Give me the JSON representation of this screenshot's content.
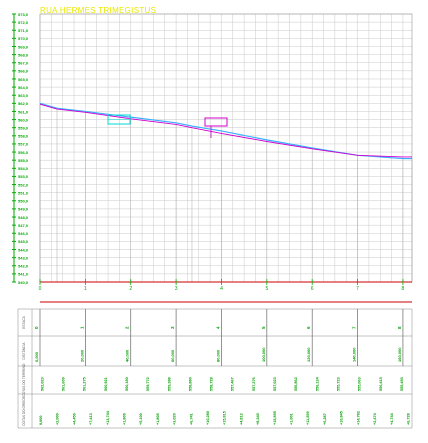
{
  "title": "RUA  HERMES  TRIMEGISTUS",
  "colors": {
    "grid": "#c8c8c8",
    "axis_green": "#00aa00",
    "terrain": "#3ab0ff",
    "project": "#d000d0",
    "box_cyan": "#00d8d8",
    "box_magenta": "#d000d0",
    "red_line": "#cc0000",
    "table_text": "#00a000"
  },
  "chart_data": {
    "type": "line",
    "ylim": [
      540.0,
      573.0
    ],
    "y_ticks": [
      "573,0",
      "572,0",
      "571,0",
      "570,0",
      "569,0",
      "568,0",
      "567,0",
      "566,0",
      "565,0",
      "564,0",
      "563,0",
      "562,0",
      "561,0",
      "560,0",
      "559,0",
      "558,0",
      "557,0",
      "556,0",
      "555,0",
      "554,0",
      "553,0",
      "552,0",
      "551,0",
      "550,0",
      "549,0",
      "548,0",
      "547,0",
      "546,0",
      "545,0",
      "544,0",
      "543,0",
      "542,0",
      "541,0",
      "540,0"
    ],
    "x_station_labels": [
      "0",
      "1",
      "2",
      "3",
      "4",
      "5",
      "6",
      "7",
      "8"
    ],
    "xlim": [
      0,
      164
    ],
    "series": [
      {
        "x": [
          0,
          7.5,
          20,
          40,
          60,
          67,
          80,
          100,
          120,
          140,
          160,
          164
        ],
        "y": [
          562.0,
          561.4,
          561.0,
          560.3,
          559.6,
          559.2,
          558.6,
          557.5,
          556.5,
          555.6,
          555.2,
          555.2
        ]
      },
      {
        "x": [
          0,
          7.5,
          20,
          40,
          60,
          67,
          80,
          100,
          120,
          140,
          160,
          164
        ],
        "y": [
          561.9,
          561.3,
          560.9,
          560.1,
          559.4,
          559.0,
          558.3,
          557.3,
          556.4,
          555.6,
          555.4,
          555.4
        ]
      }
    ]
  },
  "table": {
    "row_labels": [
      "ESTACA",
      "DISTÂNCIA",
      "COTAS DO TERRENO",
      "COTAS DO GREIDE"
    ],
    "estaca": [
      "0",
      "1",
      "2",
      "3",
      "4",
      "5",
      "6",
      "7",
      "8"
    ],
    "distancia": [
      "0,000",
      "20,000",
      "40,000",
      "60,000",
      "80,000",
      "100,000",
      "120,000",
      "140,000",
      "160,000"
    ],
    "cotas_terreno": [
      "562,023",
      "561,609",
      "561,275",
      "560,921",
      "560,180",
      "559,772",
      "559,388",
      "558,880",
      "558,728",
      "557,467",
      "557,276",
      "557,023",
      "556,862",
      "556,124",
      "555,723",
      "555,063",
      "556,415",
      "555,493"
    ],
    "cotas_greide": [
      "0,000",
      "+2,000",
      "+4,450",
      "+7,413",
      "+13,744",
      "+1,809",
      "+5,100",
      "+1,805",
      "+3,020",
      "+6,741",
      "+10,280",
      "+15,815",
      "+4,812",
      "+8,340",
      "+15,895",
      "+1,001",
      "+11,559",
      "+6,287",
      "+10,845",
      "+14,782",
      "+2,474",
      "+4,744",
      "+6,728"
    ]
  }
}
